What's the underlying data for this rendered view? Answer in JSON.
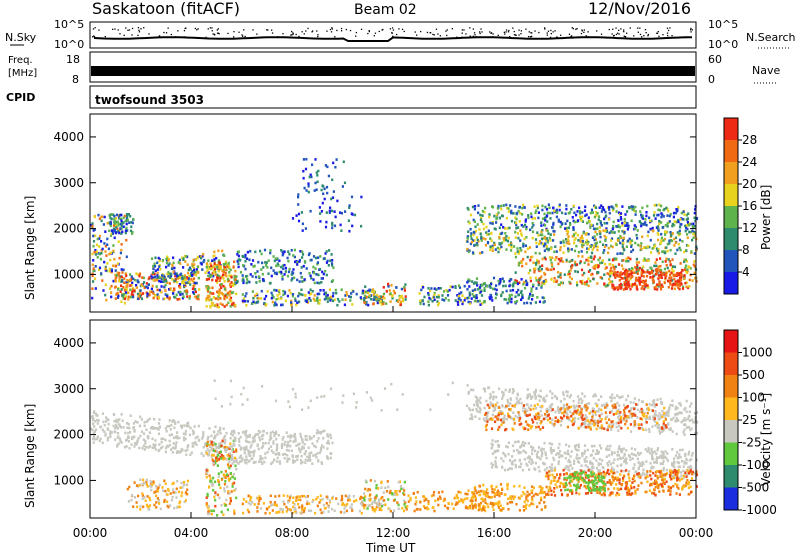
{
  "header": {
    "station": "Saskatoon (fitACF)",
    "beam": "Beam 02",
    "date": "12/Nov/2016"
  },
  "nsky": {
    "label": "N.Sky",
    "tick_top": "10^5",
    "tick_bottom": "10^0",
    "right_label": "N.Search",
    "right_tick_top": "10^5",
    "right_tick_bottom": "10^0"
  },
  "freq": {
    "label_top": "Freq.",
    "label_unit": "[MHz]",
    "tick_top": "18",
    "tick_bottom": "8",
    "right_label": "Nave",
    "right_tick_top": "60",
    "right_tick_bottom": "0"
  },
  "cpid": {
    "label": "CPID",
    "value": "twofsound 3503"
  },
  "chart_data": [
    {
      "type": "heatmap",
      "title": "",
      "xlabel": "",
      "ylabel": "Slant Range [km]",
      "xlim": [
        "00:00",
        "00:00"
      ],
      "ylim": [
        180,
        4500
      ],
      "yticks": [
        "1000",
        "2000",
        "3000",
        "4000"
      ],
      "colorbar": {
        "label": "Power [dB]",
        "ticks": [
          "4",
          "8",
          "12",
          "16",
          "20",
          "24",
          "28"
        ],
        "colors": [
          "#1a1ae6",
          "#2255bb",
          "#2e8b6e",
          "#5fb34d",
          "#e8d21e",
          "#f0a01e",
          "#f06a14",
          "#ee2a14"
        ]
      }
    },
    {
      "type": "heatmap",
      "title": "",
      "xlabel": "Time UT",
      "ylabel": "Slant Range [km]",
      "xlim": [
        "00:00",
        "00:00"
      ],
      "ylim": [
        180,
        4500
      ],
      "xticks": [
        "00:00",
        "04:00",
        "08:00",
        "12:00",
        "16:00",
        "20:00",
        "00:00"
      ],
      "yticks": [
        "1000",
        "2000",
        "3000",
        "4000"
      ],
      "colorbar": {
        "label": "Velocity  [m s⁻¹]",
        "ticks": [
          "1000",
          "500",
          "100",
          "25",
          "-25",
          "-100",
          "-500",
          "-1000"
        ],
        "colors": [
          "#1a2ee0",
          "#2e8b6e",
          "#5fc83c",
          "#c8c8c0",
          "#ffb81e",
          "#f08214",
          "#ee4a14",
          "#e61414"
        ]
      }
    }
  ]
}
